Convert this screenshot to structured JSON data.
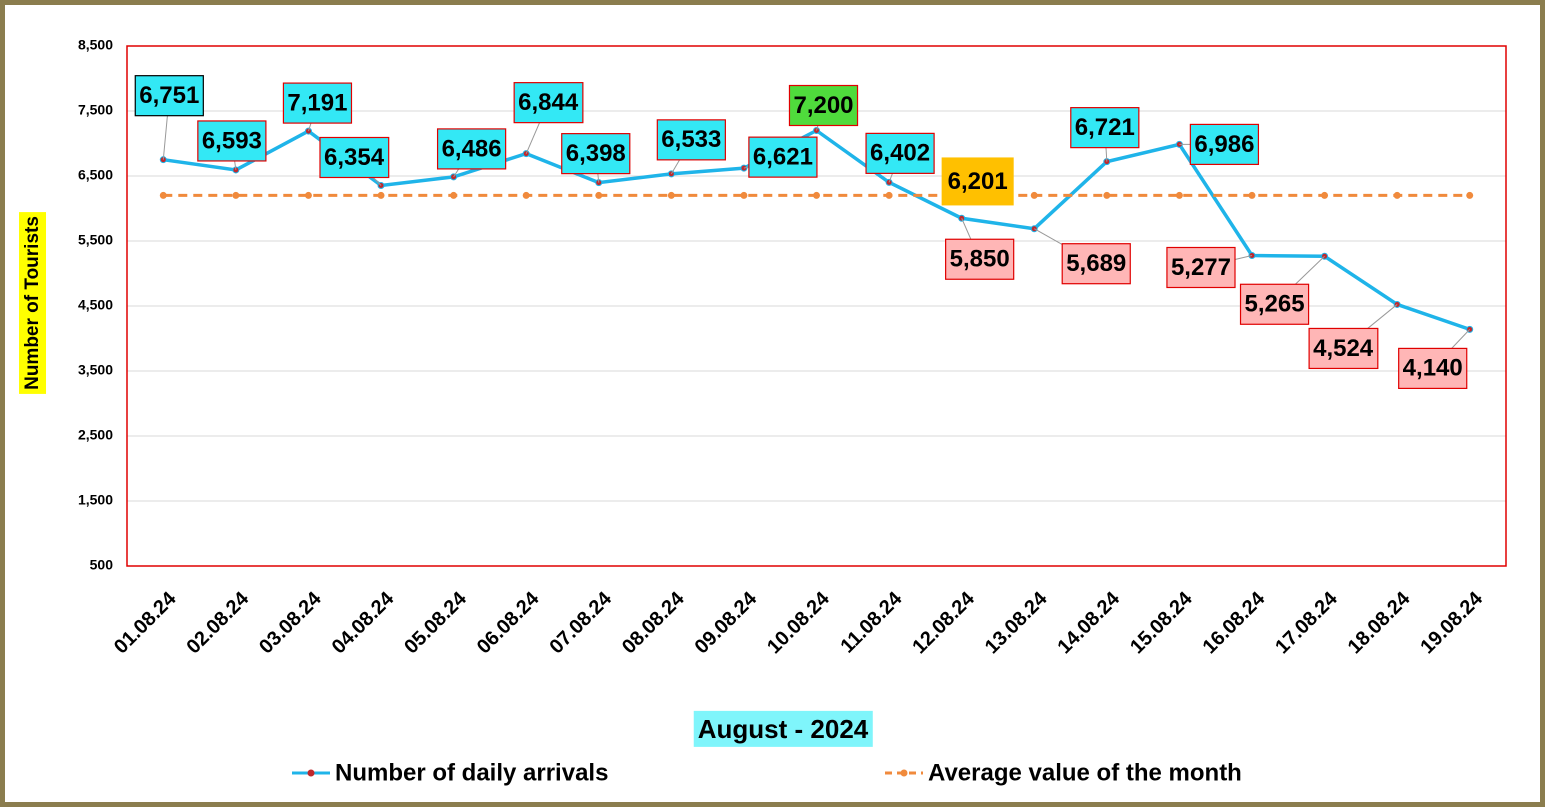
{
  "chart_data": {
    "type": "line",
    "xlabel": "August - 2024",
    "ylabel": "Number of Tourists",
    "categories": [
      "01.08.24",
      "02.08.24",
      "03.08.24",
      "04.08.24",
      "05.08.24",
      "06.08.24",
      "07.08.24",
      "08.08.24",
      "09.08.24",
      "10.08.24",
      "11.08.24",
      "12.08.24",
      "13.08.24",
      "14.08.24",
      "15.08.24",
      "16.08.24",
      "17.08.24",
      "18.08.24",
      "19.08.24"
    ],
    "series": [
      {
        "name": "Number of daily arrivals",
        "color": "#1fb4e9",
        "values": [
          6751,
          6593,
          7191,
          6354,
          6486,
          6844,
          6398,
          6533,
          6621,
          7200,
          6402,
          5850,
          5689,
          6721,
          6986,
          5277,
          5265,
          4524,
          4140
        ],
        "value_labels": [
          "6,751",
          "6,593",
          "7,191",
          "6,354",
          "6,486",
          "6,844",
          "6,398",
          "6,533",
          "6,621",
          "7,200",
          "6,402",
          "5,850",
          "5,689",
          "6,721",
          "6,986",
          "5,277",
          "5,265",
          "4,524",
          "4,140"
        ]
      },
      {
        "name": "Average value of the month",
        "color": "#f08a3c",
        "dashed": true,
        "values": [
          6201,
          6201,
          6201,
          6201,
          6201,
          6201,
          6201,
          6201,
          6201,
          6201,
          6201,
          6201,
          6201,
          6201,
          6201,
          6201,
          6201,
          6201,
          6201
        ],
        "value_labels": [
          null,
          null,
          null,
          null,
          null,
          null,
          null,
          null,
          null,
          null,
          null,
          "6,201",
          null,
          null,
          null,
          null,
          null,
          null,
          null
        ]
      }
    ],
    "ylim": [
      500,
      8500
    ],
    "yticks": [
      {
        "value": 500,
        "label": "500"
      },
      {
        "value": 1500,
        "label": "1,500"
      },
      {
        "value": 2500,
        "label": "2,500"
      },
      {
        "value": 3500,
        "label": "3,500"
      },
      {
        "value": 4500,
        "label": "4,500"
      },
      {
        "value": 5500,
        "label": "5,500"
      },
      {
        "value": 6500,
        "label": "6,500"
      },
      {
        "value": 7500,
        "label": "7,500"
      },
      {
        "value": 8500,
        "label": "8,500"
      }
    ],
    "grid": true,
    "legend": "bottom"
  }
}
